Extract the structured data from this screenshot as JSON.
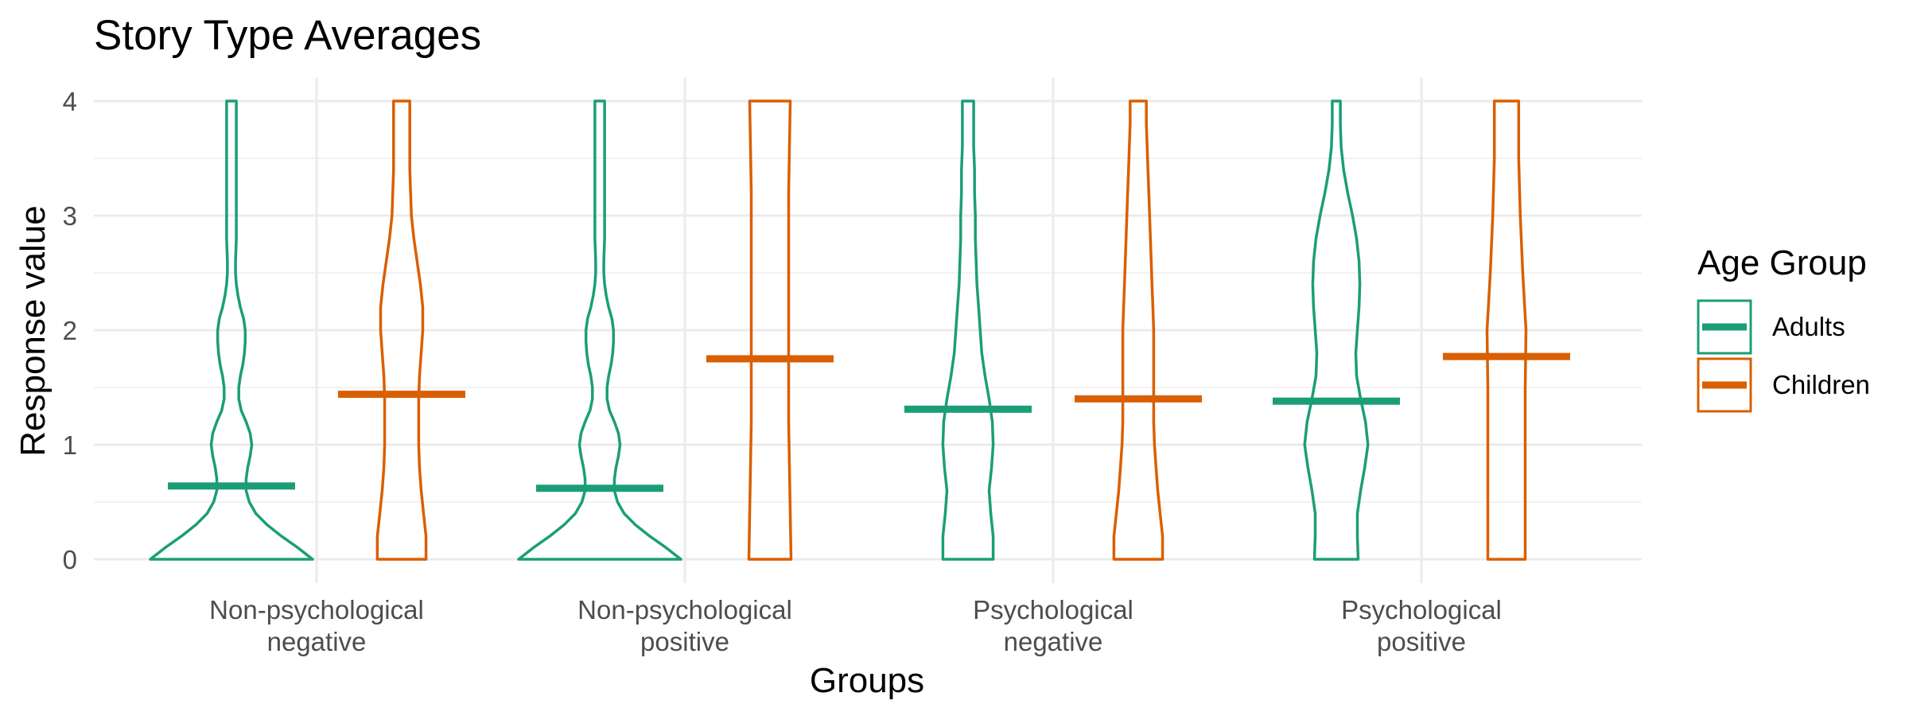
{
  "chart_data": {
    "type": "violin",
    "title": "Story Type Averages",
    "xlabel": "Groups",
    "ylabel": "Response value",
    "ylim": [
      0,
      4
    ],
    "yticks": [
      "0",
      "1",
      "2",
      "3",
      "4"
    ],
    "grid": true,
    "legend": {
      "title": "Age Group",
      "placement": "right",
      "entries": [
        "Adults",
        "Children"
      ]
    },
    "categories": [
      [
        "Non-psychological",
        "negative"
      ],
      [
        "Non-psychological",
        "positive"
      ],
      [
        "Psychological",
        "negative"
      ],
      [
        "Psychological",
        "positive"
      ]
    ],
    "series": [
      {
        "name": "Adults",
        "color": "#1b9e77",
        "means": [
          0.64,
          0.62,
          1.31,
          1.38
        ],
        "density_profiles": [
          [
            [
              0,
              1.0
            ],
            [
              0.1,
              0.82
            ],
            [
              0.2,
              0.62
            ],
            [
              0.3,
              0.44
            ],
            [
              0.4,
              0.3
            ],
            [
              0.5,
              0.22
            ],
            [
              0.6,
              0.18
            ],
            [
              0.7,
              0.18
            ],
            [
              0.8,
              0.2
            ],
            [
              0.9,
              0.23
            ],
            [
              1.0,
              0.25
            ],
            [
              1.1,
              0.23
            ],
            [
              1.2,
              0.18
            ],
            [
              1.3,
              0.12
            ],
            [
              1.4,
              0.09
            ],
            [
              1.5,
              0.09
            ],
            [
              1.6,
              0.11
            ],
            [
              1.7,
              0.14
            ],
            [
              1.8,
              0.16
            ],
            [
              1.9,
              0.17
            ],
            [
              2.0,
              0.17
            ],
            [
              2.1,
              0.15
            ],
            [
              2.2,
              0.11
            ],
            [
              2.3,
              0.08
            ],
            [
              2.4,
              0.06
            ],
            [
              2.5,
              0.05
            ],
            [
              2.6,
              0.05
            ],
            [
              2.8,
              0.06
            ],
            [
              3.0,
              0.06
            ],
            [
              3.2,
              0.06
            ],
            [
              3.4,
              0.06
            ],
            [
              3.6,
              0.06
            ],
            [
              3.8,
              0.06
            ],
            [
              4.0,
              0.06
            ]
          ],
          [
            [
              0,
              1.0
            ],
            [
              0.1,
              0.82
            ],
            [
              0.2,
              0.62
            ],
            [
              0.3,
              0.44
            ],
            [
              0.4,
              0.3
            ],
            [
              0.5,
              0.22
            ],
            [
              0.6,
              0.18
            ],
            [
              0.7,
              0.18
            ],
            [
              0.8,
              0.2
            ],
            [
              0.9,
              0.23
            ],
            [
              1.0,
              0.25
            ],
            [
              1.1,
              0.23
            ],
            [
              1.2,
              0.18
            ],
            [
              1.3,
              0.12
            ],
            [
              1.4,
              0.09
            ],
            [
              1.5,
              0.09
            ],
            [
              1.6,
              0.11
            ],
            [
              1.7,
              0.14
            ],
            [
              1.8,
              0.16
            ],
            [
              1.9,
              0.17
            ],
            [
              2.0,
              0.17
            ],
            [
              2.1,
              0.15
            ],
            [
              2.2,
              0.11
            ],
            [
              2.3,
              0.08
            ],
            [
              2.4,
              0.06
            ],
            [
              2.5,
              0.05
            ],
            [
              2.6,
              0.05
            ],
            [
              2.8,
              0.06
            ],
            [
              3.0,
              0.06
            ],
            [
              3.2,
              0.06
            ],
            [
              3.4,
              0.06
            ],
            [
              3.6,
              0.06
            ],
            [
              3.8,
              0.06
            ],
            [
              4.0,
              0.06
            ]
          ],
          [
            [
              0,
              0.31
            ],
            [
              0.2,
              0.31
            ],
            [
              0.4,
              0.28
            ],
            [
              0.6,
              0.26
            ],
            [
              0.8,
              0.29
            ],
            [
              1.0,
              0.31
            ],
            [
              1.2,
              0.3
            ],
            [
              1.4,
              0.26
            ],
            [
              1.6,
              0.21
            ],
            [
              1.8,
              0.17
            ],
            [
              2.0,
              0.15
            ],
            [
              2.2,
              0.13
            ],
            [
              2.4,
              0.11
            ],
            [
              2.6,
              0.1
            ],
            [
              2.8,
              0.09
            ],
            [
              3.0,
              0.09
            ],
            [
              3.2,
              0.08
            ],
            [
              3.4,
              0.08
            ],
            [
              3.6,
              0.07
            ],
            [
              3.8,
              0.07
            ],
            [
              4.0,
              0.07
            ]
          ],
          [
            [
              0,
              0.27
            ],
            [
              0.2,
              0.26
            ],
            [
              0.4,
              0.26
            ],
            [
              0.6,
              0.3
            ],
            [
              0.8,
              0.35
            ],
            [
              1.0,
              0.39
            ],
            [
              1.2,
              0.36
            ],
            [
              1.4,
              0.3
            ],
            [
              1.6,
              0.25
            ],
            [
              1.8,
              0.24
            ],
            [
              2.0,
              0.26
            ],
            [
              2.2,
              0.28
            ],
            [
              2.4,
              0.29
            ],
            [
              2.6,
              0.28
            ],
            [
              2.8,
              0.25
            ],
            [
              3.0,
              0.2
            ],
            [
              3.2,
              0.14
            ],
            [
              3.4,
              0.09
            ],
            [
              3.6,
              0.06
            ],
            [
              3.8,
              0.05
            ],
            [
              4.0,
              0.05
            ]
          ]
        ]
      },
      {
        "name": "Children",
        "color": "#d95f02",
        "means": [
          1.44,
          1.75,
          1.4,
          1.77
        ],
        "density_profiles": [
          [
            [
              0,
              0.3
            ],
            [
              0.2,
              0.3
            ],
            [
              0.4,
              0.27
            ],
            [
              0.6,
              0.24
            ],
            [
              0.8,
              0.22
            ],
            [
              1.0,
              0.21
            ],
            [
              1.2,
              0.21
            ],
            [
              1.4,
              0.21
            ],
            [
              1.6,
              0.22
            ],
            [
              1.8,
              0.24
            ],
            [
              2.0,
              0.26
            ],
            [
              2.2,
              0.26
            ],
            [
              2.4,
              0.23
            ],
            [
              2.6,
              0.19
            ],
            [
              2.8,
              0.15
            ],
            [
              3.0,
              0.12
            ],
            [
              3.2,
              0.11
            ],
            [
              3.4,
              0.1
            ],
            [
              3.6,
              0.1
            ],
            [
              3.8,
              0.1
            ],
            [
              4.0,
              0.1
            ]
          ],
          [
            [
              0,
              0.26
            ],
            [
              0.4,
              0.25
            ],
            [
              0.8,
              0.24
            ],
            [
              1.2,
              0.23
            ],
            [
              1.6,
              0.23
            ],
            [
              2.0,
              0.23
            ],
            [
              2.4,
              0.23
            ],
            [
              2.8,
              0.23
            ],
            [
              3.2,
              0.23
            ],
            [
              3.6,
              0.24
            ],
            [
              4.0,
              0.25
            ]
          ],
          [
            [
              0,
              0.3
            ],
            [
              0.2,
              0.3
            ],
            [
              0.4,
              0.27
            ],
            [
              0.6,
              0.24
            ],
            [
              0.8,
              0.22
            ],
            [
              1.0,
              0.2
            ],
            [
              1.2,
              0.19
            ],
            [
              1.4,
              0.19
            ],
            [
              1.6,
              0.19
            ],
            [
              1.8,
              0.19
            ],
            [
              2.0,
              0.19
            ],
            [
              2.2,
              0.18
            ],
            [
              2.4,
              0.17
            ],
            [
              2.6,
              0.16
            ],
            [
              2.8,
              0.15
            ],
            [
              3.0,
              0.14
            ],
            [
              3.2,
              0.13
            ],
            [
              3.4,
              0.12
            ],
            [
              3.6,
              0.11
            ],
            [
              3.8,
              0.1
            ],
            [
              4.0,
              0.1
            ]
          ],
          [
            [
              0,
              0.23
            ],
            [
              0.5,
              0.23
            ],
            [
              1.0,
              0.23
            ],
            [
              1.5,
              0.23
            ],
            [
              2.0,
              0.24
            ],
            [
              2.5,
              0.2
            ],
            [
              3.0,
              0.17
            ],
            [
              3.5,
              0.15
            ],
            [
              4.0,
              0.15
            ]
          ]
        ]
      }
    ]
  }
}
